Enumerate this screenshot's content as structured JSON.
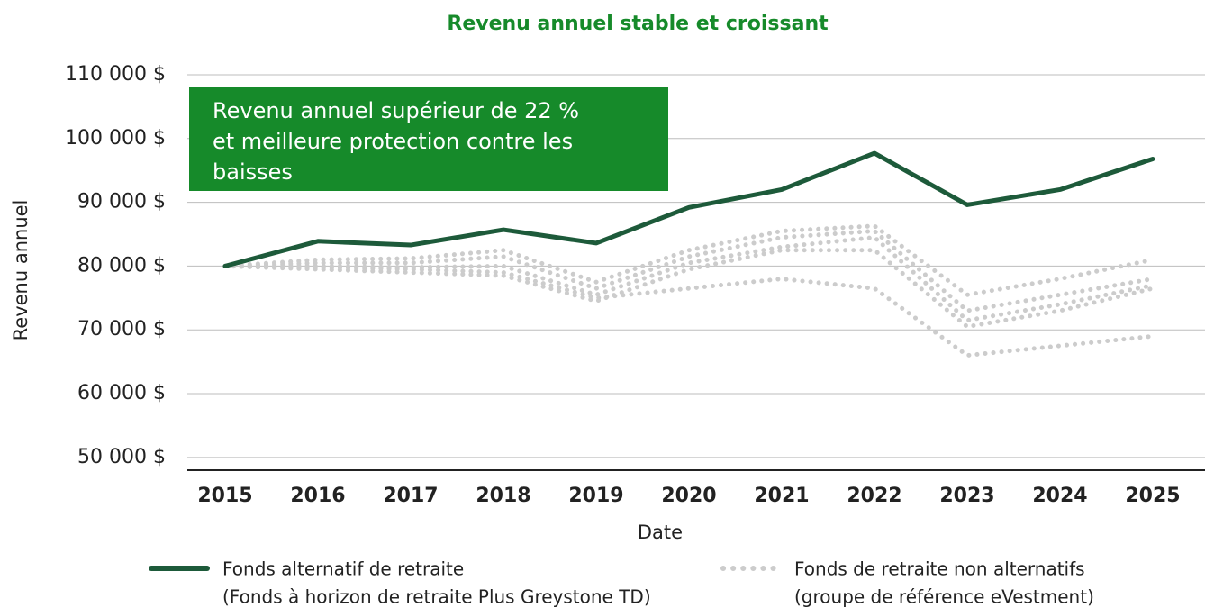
{
  "chart_data": {
    "type": "line",
    "title": "Revenu annuel stable et croissant",
    "x_label": "Date",
    "y_label": "Revenu annuel",
    "annotation": [
      "Revenu annuel supérieur de 22 %",
      "et meilleure protection contre les",
      "baisses"
    ],
    "annotation_color": "#168a2a",
    "categories": [
      "2015",
      "2016",
      "2017",
      "2018",
      "2019",
      "2020",
      "2021",
      "2022",
      "2023",
      "2024",
      "2025"
    ],
    "ylim": [
      48000,
      110000
    ],
    "yticks": [
      {
        "value": 50000,
        "label": "50 000 $"
      },
      {
        "value": 60000,
        "label": "60 000 $"
      },
      {
        "value": 70000,
        "label": "70 000 $"
      },
      {
        "value": 80000,
        "label": "80 000 $"
      },
      {
        "value": 90000,
        "label": "90 000 $"
      },
      {
        "value": 100000,
        "label": "100 000 $"
      },
      {
        "value": 110000,
        "label": "110 000 $"
      }
    ],
    "grid": true,
    "series": [
      {
        "name": [
          "Fonds alternatif de retraite",
          "(Fonds à horizon de retraite Plus Greystone TD)"
        ],
        "color": "#1d5a3a",
        "style": "solid",
        "values": [
          80000,
          83900,
          83300,
          85700,
          83600,
          89200,
          92000,
          97700,
          89600,
          92000,
          96800
        ]
      },
      {
        "name": [
          "Fonds de retraite non alternatifs",
          "(groupe de référence eVestment)"
        ],
        "color": "#cccccc",
        "style": "dotted",
        "values": [
          80000,
          81000,
          81200,
          82500,
          77500,
          82500,
          85500,
          86300,
          75500,
          78000,
          81000
        ]
      },
      {
        "color": "#cccccc",
        "style": "dotted",
        "values": [
          80000,
          80500,
          80500,
          81500,
          76500,
          81500,
          84500,
          85500,
          73000,
          75500,
          78000
        ]
      },
      {
        "color": "#cccccc",
        "style": "dotted",
        "values": [
          80000,
          80000,
          79800,
          80000,
          75500,
          80500,
          83000,
          84500,
          71500,
          74000,
          77000
        ]
      },
      {
        "color": "#cccccc",
        "style": "dotted",
        "values": [
          80000,
          79500,
          79000,
          78500,
          74500,
          79500,
          82500,
          82500,
          70500,
          73000,
          76500
        ]
      },
      {
        "color": "#cccccc",
        "style": "dotted",
        "values": [
          80000,
          79800,
          79500,
          79000,
          75000,
          76500,
          78000,
          76500,
          66000,
          67500,
          69000
        ]
      }
    ]
  }
}
